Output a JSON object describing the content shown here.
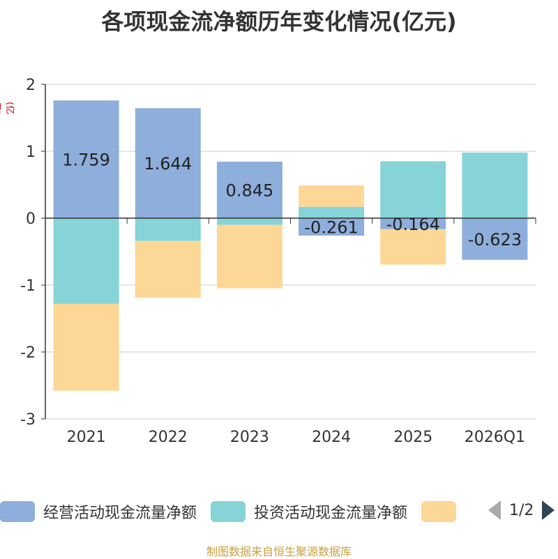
{
  "chart_data": {
    "type": "bar",
    "stacked": true,
    "title": "各项现金流净额历年变化情况(亿元)",
    "ylabel": "(亿元)",
    "xlabel": "",
    "ylim": [
      -3,
      2
    ],
    "yticks": [
      2,
      1,
      0,
      -1,
      -2,
      -3
    ],
    "categories": [
      "2021",
      "2022",
      "2023",
      "2024",
      "2025",
      "2026Q1"
    ],
    "series": [
      {
        "name": "经营活动现金流量净额",
        "color": "#8eaedb",
        "values": [
          1.759,
          1.644,
          0.845,
          -0.261,
          -0.164,
          -0.623
        ]
      },
      {
        "name": "投资活动现金流量净额",
        "color": "#86d4d7",
        "values": [
          -1.28,
          -0.34,
          -0.1,
          0.17,
          0.85,
          0.98
        ]
      },
      {
        "name": "",
        "color": "#fdd796",
        "values": [
          -1.3,
          -0.85,
          -0.95,
          0.32,
          -0.53,
          0
        ]
      }
    ],
    "data_labels": [
      "1.759",
      "1.644",
      "0.845",
      "-0.261",
      "-0.164",
      "-0.623"
    ],
    "legend_position": "bottom"
  },
  "legend": {
    "page": "1/2"
  },
  "source": "制图数据来自恒生聚源数据库"
}
